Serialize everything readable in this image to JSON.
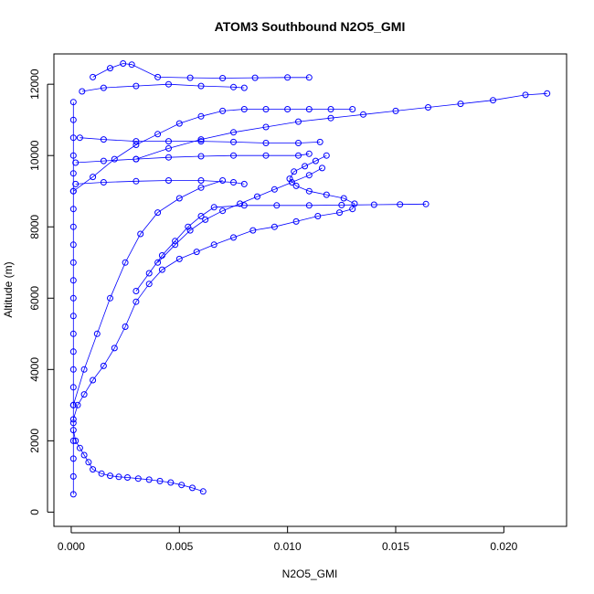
{
  "chart_data": {
    "type": "scatter",
    "title": "ATOM3 Southbound N2O5_GMI",
    "xlabel": "N2O5_GMI",
    "ylabel": "Altitude (m)",
    "xlim": [
      -0.0008,
      0.0229
    ],
    "ylim": [
      -400,
      12850
    ],
    "xticks": [
      0.0,
      0.005,
      0.01,
      0.015,
      0.02
    ],
    "xtick_labels": [
      "0.000",
      "0.005",
      "0.010",
      "0.015",
      "0.020"
    ],
    "yticks": [
      0,
      2000,
      4000,
      6000,
      8000,
      10000,
      12000
    ],
    "ytick_labels": [
      "0",
      "2000",
      "4000",
      "6000",
      "8000",
      "10000",
      "12000"
    ],
    "grid": false,
    "legend": "none",
    "marker": "open-circle",
    "series_color": "#0000ff",
    "series": [
      {
        "values": [
          [
            0.0061,
            580
          ],
          [
            0.0056,
            680
          ],
          [
            0.0051,
            760
          ],
          [
            0.0046,
            830
          ],
          [
            0.0041,
            870
          ],
          [
            0.0036,
            910
          ],
          [
            0.0031,
            940
          ],
          [
            0.0026,
            970
          ],
          [
            0.0022,
            990
          ],
          [
            0.0018,
            1020
          ],
          [
            0.0014,
            1080
          ],
          [
            0.001,
            1200
          ],
          [
            0.0008,
            1400
          ],
          [
            0.0006,
            1600
          ],
          [
            0.0004,
            1800
          ],
          [
            0.0002,
            2000
          ],
          [
            0.0001,
            2300
          ]
        ]
      },
      {
        "values": [
          [
            0.0001,
            2600
          ],
          [
            0.0003,
            3000
          ],
          [
            0.0006,
            3300
          ],
          [
            0.001,
            3700
          ],
          [
            0.0015,
            4100
          ],
          [
            0.002,
            4600
          ],
          [
            0.0025,
            5200
          ],
          [
            0.003,
            5900
          ],
          [
            0.0036,
            6400
          ],
          [
            0.0042,
            6800
          ],
          [
            0.005,
            7100
          ],
          [
            0.0058,
            7300
          ],
          [
            0.0066,
            7500
          ],
          [
            0.0075,
            7700
          ],
          [
            0.0084,
            7900
          ],
          [
            0.0094,
            8000
          ],
          [
            0.0104,
            8150
          ],
          [
            0.0114,
            8300
          ],
          [
            0.0124,
            8400
          ],
          [
            0.013,
            8500
          ],
          [
            0.0131,
            8650
          ],
          [
            0.0126,
            8800
          ],
          [
            0.0118,
            8900
          ],
          [
            0.011,
            9000
          ],
          [
            0.0104,
            9150
          ],
          [
            0.0101,
            9350
          ],
          [
            0.0103,
            9550
          ],
          [
            0.0108,
            9700
          ],
          [
            0.0113,
            9850
          ],
          [
            0.0118,
            10000
          ]
        ]
      },
      {
        "values": [
          [
            0.003,
            6200
          ],
          [
            0.0036,
            6700
          ],
          [
            0.0042,
            7200
          ],
          [
            0.0048,
            7600
          ],
          [
            0.0054,
            8000
          ],
          [
            0.006,
            8300
          ],
          [
            0.0066,
            8550
          ],
          [
            0.008,
            8600
          ],
          [
            0.0095,
            8600
          ],
          [
            0.011,
            8600
          ],
          [
            0.0125,
            8610
          ],
          [
            0.014,
            8620
          ],
          [
            0.0152,
            8630
          ],
          [
            0.0164,
            8640
          ]
        ]
      },
      {
        "values": [
          [
            0.004,
            7000
          ],
          [
            0.0048,
            7500
          ],
          [
            0.0055,
            7900
          ],
          [
            0.0062,
            8200
          ],
          [
            0.007,
            8450
          ],
          [
            0.0078,
            8650
          ],
          [
            0.0086,
            8850
          ],
          [
            0.0094,
            9050
          ],
          [
            0.0102,
            9250
          ],
          [
            0.011,
            9450
          ],
          [
            0.0116,
            9650
          ]
        ]
      },
      {
        "values": [
          [
            0.0001,
            9000
          ],
          [
            0.001,
            9400
          ],
          [
            0.002,
            9900
          ],
          [
            0.003,
            10300
          ],
          [
            0.004,
            10600
          ],
          [
            0.005,
            10900
          ],
          [
            0.006,
            11100
          ],
          [
            0.007,
            11250
          ],
          [
            0.008,
            11300
          ],
          [
            0.009,
            11300
          ],
          [
            0.01,
            11300
          ],
          [
            0.011,
            11300
          ],
          [
            0.012,
            11300
          ],
          [
            0.013,
            11300
          ]
        ]
      },
      {
        "values": [
          [
            0.003,
            9900
          ],
          [
            0.0045,
            10200
          ],
          [
            0.006,
            10450
          ],
          [
            0.0075,
            10650
          ],
          [
            0.009,
            10800
          ],
          [
            0.0105,
            10950
          ],
          [
            0.012,
            11050
          ],
          [
            0.0135,
            11150
          ],
          [
            0.015,
            11250
          ],
          [
            0.0165,
            11350
          ],
          [
            0.018,
            11450
          ],
          [
            0.0195,
            11550
          ],
          [
            0.021,
            11700
          ],
          [
            0.022,
            11740
          ]
        ]
      },
      {
        "values": [
          [
            0.001,
            12200
          ],
          [
            0.0018,
            12450
          ],
          [
            0.0024,
            12580
          ],
          [
            0.0028,
            12550
          ],
          [
            0.004,
            12200
          ],
          [
            0.0055,
            12180
          ],
          [
            0.007,
            12170
          ],
          [
            0.0085,
            12180
          ],
          [
            0.01,
            12190
          ],
          [
            0.011,
            12190
          ]
        ]
      },
      {
        "values": [
          [
            0.0005,
            11800
          ],
          [
            0.0015,
            11900
          ],
          [
            0.003,
            11950
          ],
          [
            0.0045,
            12000
          ],
          [
            0.006,
            11950
          ],
          [
            0.0075,
            11920
          ],
          [
            0.008,
            11900
          ]
        ]
      },
      {
        "values": [
          [
            0.0002,
            9800
          ],
          [
            0.0015,
            9850
          ],
          [
            0.003,
            9900
          ],
          [
            0.0045,
            9950
          ],
          [
            0.006,
            9980
          ],
          [
            0.0075,
            10000
          ],
          [
            0.009,
            10000
          ],
          [
            0.0105,
            10000
          ],
          [
            0.011,
            10050
          ]
        ]
      },
      {
        "values": [
          [
            0.0002,
            9200
          ],
          [
            0.0015,
            9250
          ],
          [
            0.003,
            9280
          ],
          [
            0.0045,
            9300
          ],
          [
            0.006,
            9300
          ],
          [
            0.0075,
            9250
          ],
          [
            0.008,
            9200
          ]
        ]
      },
      {
        "values": [
          [
            0.0004,
            10500
          ],
          [
            0.0015,
            10450
          ],
          [
            0.003,
            10400
          ],
          [
            0.0045,
            10400
          ],
          [
            0.006,
            10400
          ],
          [
            0.0075,
            10380
          ],
          [
            0.009,
            10350
          ],
          [
            0.0105,
            10350
          ],
          [
            0.0115,
            10380
          ]
        ]
      },
      {
        "values": [
          [
            0.0001,
            3000
          ],
          [
            0.0006,
            4000
          ],
          [
            0.0012,
            5000
          ],
          [
            0.0018,
            6000
          ],
          [
            0.0025,
            7000
          ],
          [
            0.0032,
            7800
          ],
          [
            0.004,
            8400
          ],
          [
            0.005,
            8800
          ],
          [
            0.006,
            9100
          ],
          [
            0.007,
            9300
          ]
        ]
      },
      {
        "values": [
          [
            0.0001,
            500
          ],
          [
            0.0001,
            1000
          ],
          [
            0.0001,
            1500
          ],
          [
            0.0001,
            2000
          ],
          [
            0.0001,
            2500
          ],
          [
            0.0001,
            3000
          ],
          [
            0.0001,
            3500
          ],
          [
            0.0001,
            4000
          ],
          [
            0.0001,
            4500
          ],
          [
            0.0001,
            5000
          ],
          [
            0.0001,
            5500
          ],
          [
            0.0001,
            6000
          ],
          [
            0.0001,
            6500
          ],
          [
            0.0001,
            7000
          ],
          [
            0.0001,
            7500
          ],
          [
            0.0001,
            8000
          ],
          [
            0.0001,
            8500
          ],
          [
            0.0001,
            9000
          ],
          [
            0.0001,
            9500
          ],
          [
            0.0001,
            10000
          ],
          [
            0.0001,
            10500
          ],
          [
            0.0001,
            11000
          ],
          [
            0.0001,
            11500
          ]
        ]
      }
    ]
  }
}
